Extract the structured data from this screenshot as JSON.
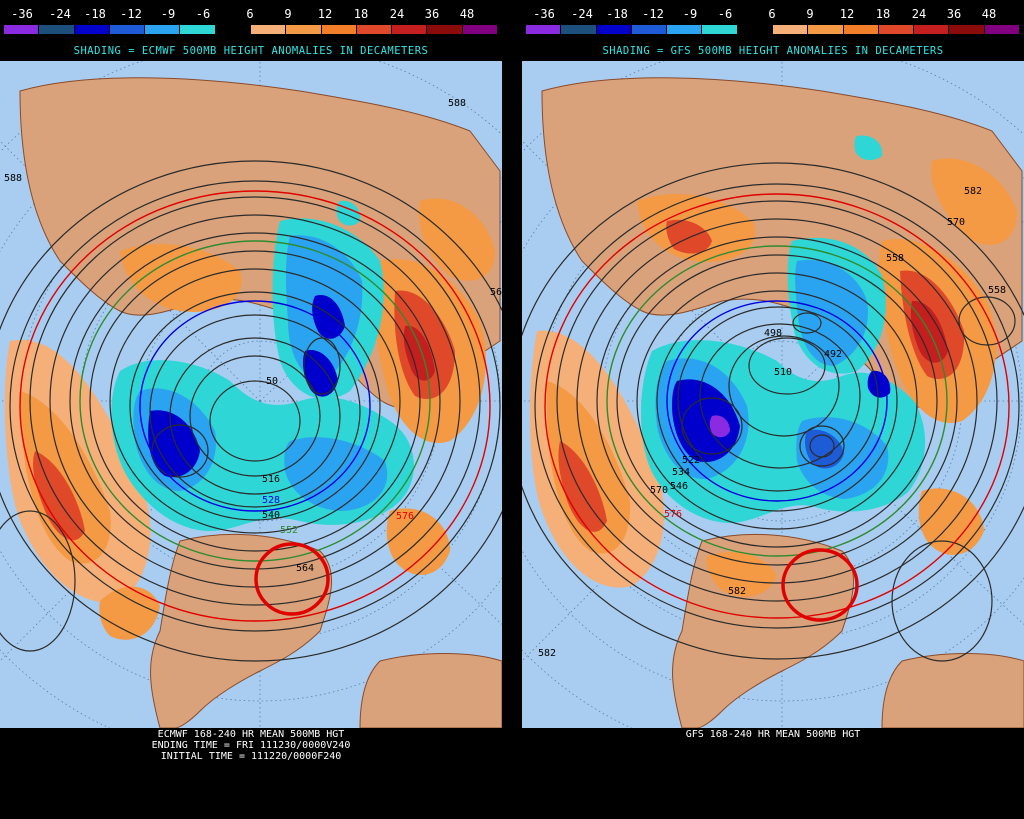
{
  "colorbar": {
    "labels": [
      "-36",
      "-24",
      "-18",
      "-12",
      "-9",
      "-6",
      "6",
      "9",
      "12",
      "18",
      "24",
      "36",
      "48"
    ],
    "colors": [
      "#8a2be2",
      "#1c4f7c",
      "#0000cc",
      "#1e5bd6",
      "#2aa4f0",
      "#2fd6d6",
      "#000000",
      "#f5b07a",
      "#f49a45",
      "#f37e2a",
      "#e0482a",
      "#c41e1e",
      "#8b0a0a",
      "#800080"
    ]
  },
  "panels": [
    {
      "subtitle": "SHADING = ECMWF 500MB HEIGHT ANOMALIES IN DECAMETERS",
      "footer_lines": [
        "ECMWF 168-240 HR MEAN 500MB HGT",
        "ENDING TIME = FRI 111230/0000V240",
        "INITIAL TIME = 111220/0000F240"
      ],
      "contour_labels": [
        "588",
        "588",
        "50",
        "516",
        "528",
        "540",
        "552",
        "564",
        "576",
        "56"
      ]
    },
    {
      "subtitle": "SHADING = GFS 500MB HEIGHT ANOMALIES IN DECAMETERS",
      "footer_lines": [
        "GFS 168-240 HR MEAN 500MB HGT"
      ],
      "contour_labels": [
        "582",
        "570",
        "558",
        "558",
        "498",
        "510",
        "492",
        "522",
        "534",
        "546",
        "570",
        "576",
        "582",
        "582"
      ]
    }
  ],
  "colors": {
    "ocean": "#a8cdf0",
    "land": "#d9a27a",
    "coast": "#8b4a2a",
    "contour": "#2b2b2b",
    "circle": "#e00000"
  }
}
